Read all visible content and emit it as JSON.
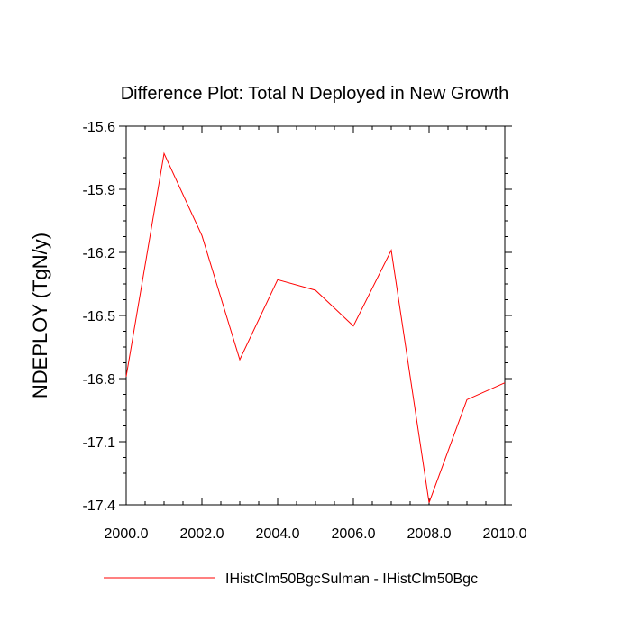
{
  "chart_data": {
    "type": "line",
    "title": "Difference Plot: Total N Deployed in New Growth",
    "xlabel": "",
    "ylabel": "NDEPLOY  (TgN/y)",
    "xlim": [
      2000.0,
      2010.0
    ],
    "ylim": [
      -17.4,
      -15.6
    ],
    "x_ticks": [
      "2000.0",
      "2002.0",
      "2004.0",
      "2006.0",
      "2008.0",
      "2010.0"
    ],
    "y_ticks": [
      "-15.6",
      "-15.9",
      "-16.2",
      "-16.5",
      "-16.8",
      "-17.1",
      "-17.4"
    ],
    "grid": false,
    "legend_position": "bottom",
    "series": [
      {
        "name": "IHistClm50BgcSulman - IHistClm50Bgc",
        "color": "#ff0000",
        "x": [
          2000,
          2001,
          2002,
          2003,
          2004,
          2005,
          2006,
          2007,
          2008,
          2009,
          2010
        ],
        "values": [
          -16.79,
          -15.73,
          -16.12,
          -16.71,
          -16.33,
          -16.38,
          -16.55,
          -16.19,
          -17.39,
          -16.9,
          -16.82
        ]
      }
    ]
  }
}
